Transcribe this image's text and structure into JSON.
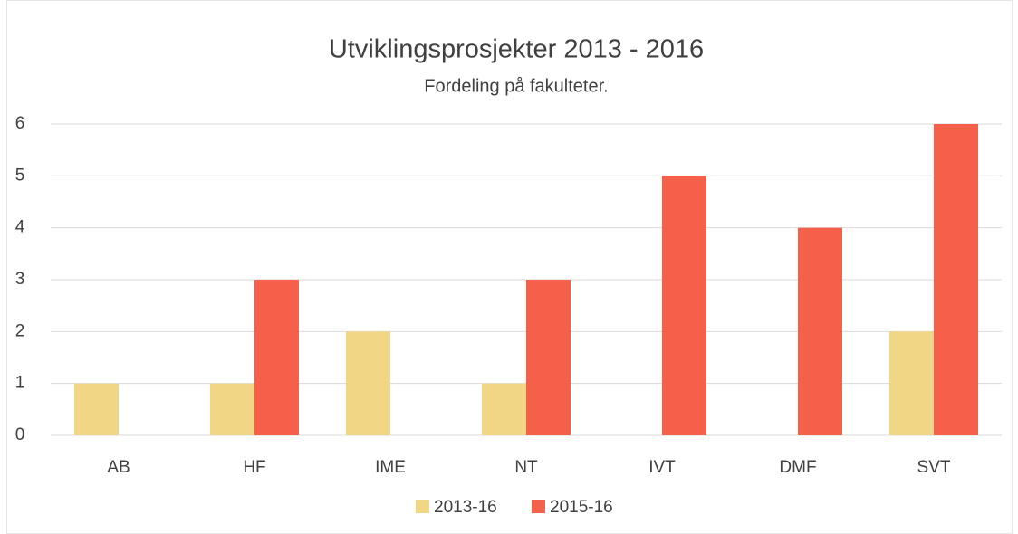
{
  "chart_data": {
    "type": "bar",
    "title": "Utviklingsprosjekter 2013 - 2016",
    "subtitle": "Fordeling på fakulteter.",
    "categories": [
      "AB",
      "HF",
      "IME",
      "NT",
      "IVT",
      "DMF",
      "SVT"
    ],
    "series": [
      {
        "name": "2013-16",
        "color": "#f1d785",
        "values": [
          1,
          1,
          2,
          1,
          null,
          null,
          2
        ]
      },
      {
        "name": "2015-16",
        "color": "#f4604a",
        "values": [
          null,
          3,
          null,
          3,
          5,
          4,
          6
        ]
      }
    ],
    "ylim": [
      0,
      6
    ],
    "yticks": [
      0,
      1,
      2,
      3,
      4,
      5,
      6
    ],
    "grid": true,
    "legend": "bottom"
  }
}
